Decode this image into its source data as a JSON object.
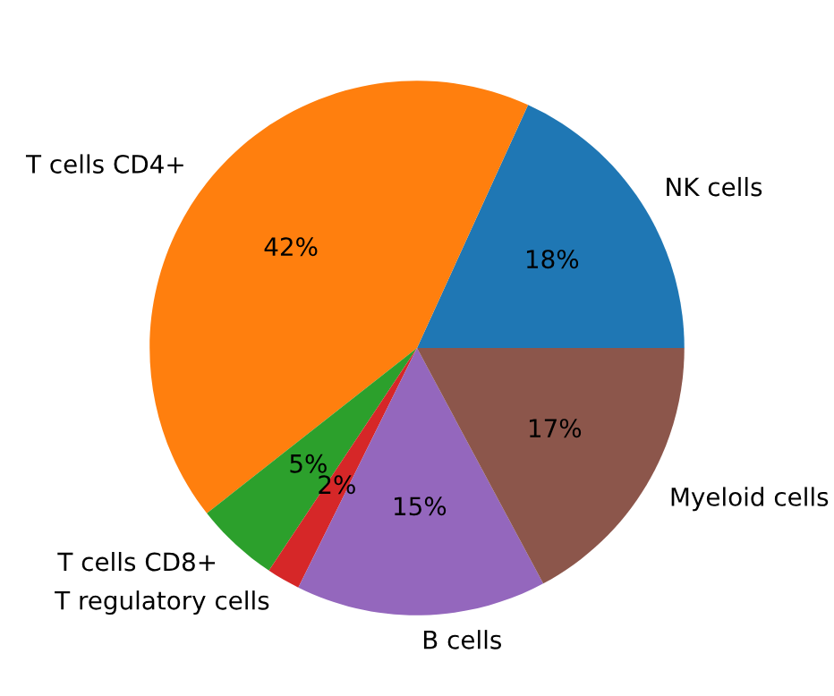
{
  "chart_data": {
    "type": "pie",
    "categories": [
      "NK cells",
      "T cells CD4+",
      "T cells CD8+",
      "T regulatory cells",
      "B cells",
      "Myeloid cells"
    ],
    "values": [
      18,
      42,
      5,
      2,
      15,
      17
    ],
    "colors": [
      "#1f77b4",
      "#ff7f0e",
      "#2ca02c",
      "#d62728",
      "#9467bd",
      "#8c564b"
    ],
    "value_labels": [
      "18%",
      "42%",
      "5%",
      "2%",
      "15%",
      "17%"
    ]
  }
}
